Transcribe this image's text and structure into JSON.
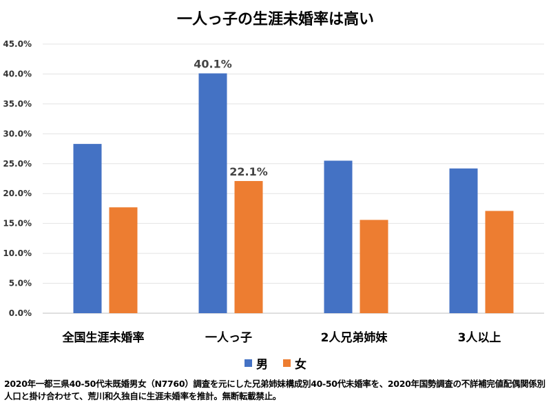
{
  "chart_data": {
    "type": "bar",
    "title": "一人っ子の生涯未婚率は高い",
    "categories": [
      "全国生涯未婚率",
      "一人っ子",
      "2人兄弟姉妹",
      "3人以上"
    ],
    "series": [
      {
        "name": "男",
        "color": "#4472C4",
        "values": [
          28.3,
          40.1,
          25.5,
          24.2
        ],
        "labels": [
          null,
          "40.1%",
          null,
          null
        ]
      },
      {
        "name": "女",
        "color": "#ED7D31",
        "values": [
          17.7,
          22.1,
          15.6,
          17.1
        ],
        "labels": [
          null,
          "22.1%",
          null,
          null
        ]
      }
    ],
    "ylim": [
      0,
      45
    ],
    "yticks": [
      "0.0%",
      "5.0%",
      "10.0%",
      "15.0%",
      "20.0%",
      "25.0%",
      "30.0%",
      "35.0%",
      "40.0%",
      "45.0%"
    ],
    "grid": true,
    "legend": "bottom",
    "xlabel": "",
    "ylabel": ""
  },
  "note": "2020年一都三県40-50代未既婚男女（N7760）調査を元にした兄弟姉妹構成別40-50代未婚率を、2020年国勢調査の不詳補完値配偶関係別人口と掛け合わせて、荒川和久独自に生涯未婚率を推計。無断転載禁止。"
}
